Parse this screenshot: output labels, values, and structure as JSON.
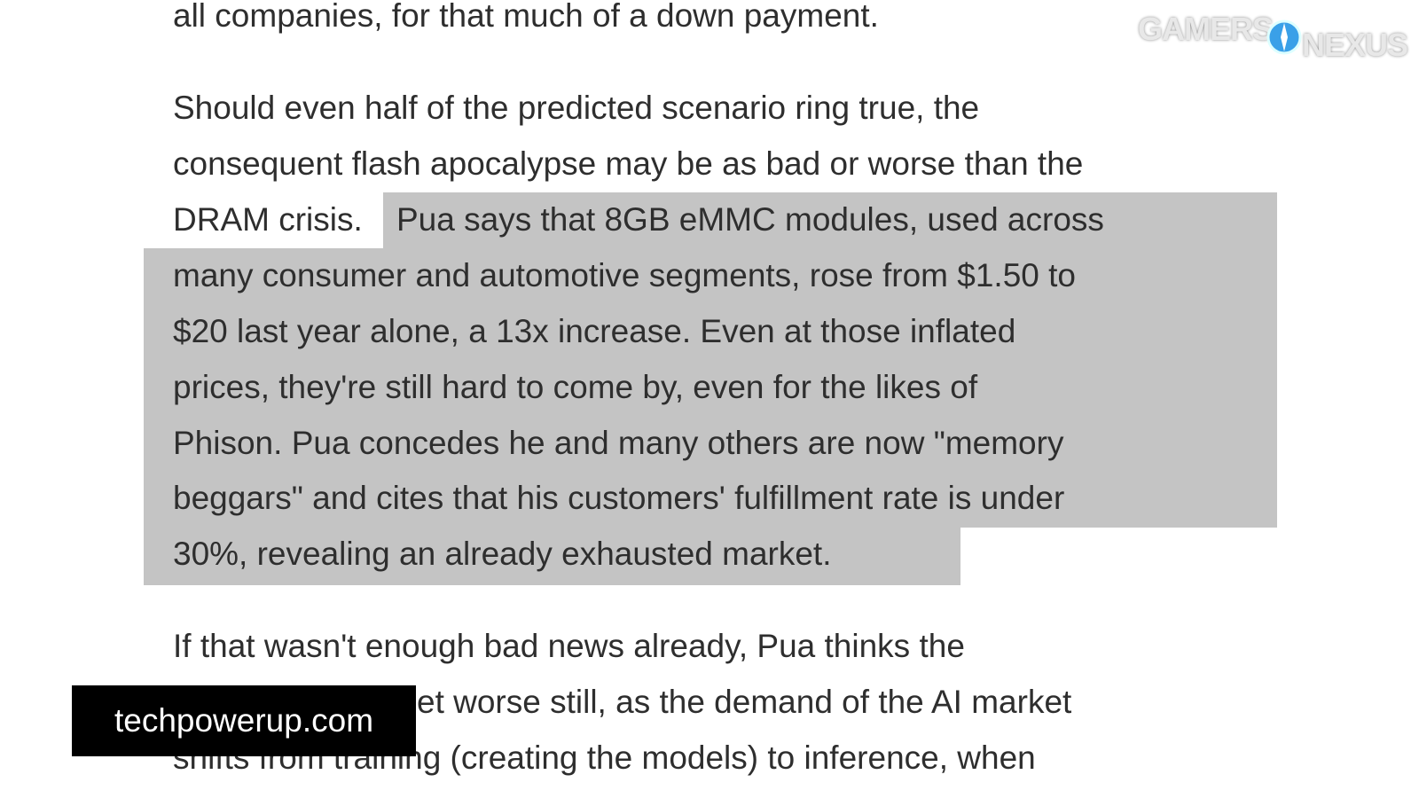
{
  "article": {
    "paragraph_0": [
      "all companies, for that much of a down payment."
    ],
    "paragraph_1_plain": [
      "Should even half of the predicted scenario ring true, the",
      "consequent flash apocalypse may be as bad or worse than the",
      "DRAM crisis."
    ],
    "paragraph_1_highlighted": [
      "Pua says that 8GB eMMC modules, used across",
      "many consumer and automotive segments, rose from $1.50 to",
      "$20 last year alone, a 13x increase. Even at those inflated",
      "prices, they're still hard to come by, even for the likes of",
      "Phison. Pua concedes he and many others are now \"memory",
      "beggars\" and cites that his customers' fulfillment rate is under",
      "30%, revealing an already exhausted market."
    ],
    "paragraph_2": [
      "If that wasn't enough bad news already, Pua thinks the",
      "et worse still, as the demand of the AI market",
      "shifts from training (creating the models) to inference, when"
    ]
  },
  "watermark": {
    "left": "GAMERS",
    "right": "NEXUS"
  },
  "caption": "techpowerup.com"
}
